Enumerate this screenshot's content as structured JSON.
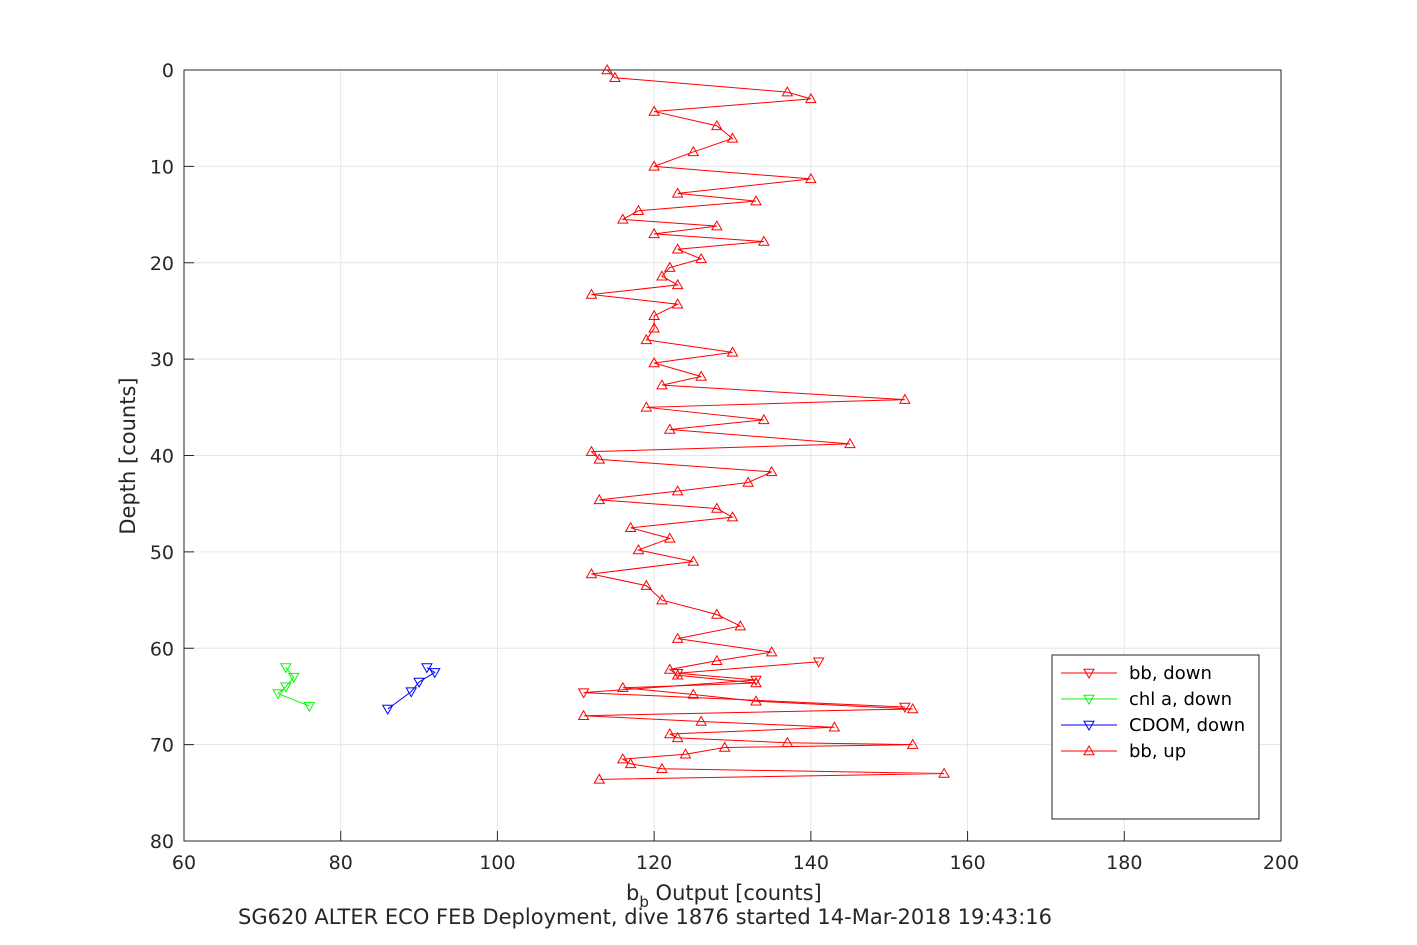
{
  "chart_data": {
    "type": "line",
    "title": "",
    "footer": "SG620 ALTER ECO FEB Deployment, dive 1876 started 14-Mar-2018 19:43:16",
    "xlabel_main": "b",
    "xlabel_sub": "b",
    "xlabel_rest": " Output [counts]",
    "ylabel": "Depth [counts]",
    "xlim": [
      60,
      200
    ],
    "ylim": [
      0,
      80
    ],
    "y_reversed": true,
    "grid": true,
    "legend_position": "bottom-right",
    "x_ticks": [
      60,
      80,
      100,
      120,
      140,
      160,
      180,
      200
    ],
    "y_ticks": [
      0,
      10,
      20,
      30,
      40,
      50,
      60,
      70,
      80
    ],
    "series": [
      {
        "name": "bb, down",
        "color": "#ff0000",
        "marker": "triangle-down",
        "x": [
          141,
          123,
          133,
          111,
          152
        ],
        "y": [
          61.4,
          62.6,
          63.3,
          64.6,
          66.1
        ]
      },
      {
        "name": "chl a, down",
        "color": "#00ff00",
        "marker": "triangle-down",
        "x": [
          73,
          74,
          73,
          72,
          76
        ],
        "y": [
          62,
          63,
          64,
          64.7,
          66
        ]
      },
      {
        "name": "CDOM, down",
        "color": "#0000ff",
        "marker": "triangle-down",
        "x": [
          91,
          92,
          90,
          89,
          86
        ],
        "y": [
          62,
          62.5,
          63.5,
          64.5,
          66.3
        ]
      },
      {
        "name": "bb, up",
        "color": "#ff0000",
        "marker": "triangle-up",
        "x": [
          114,
          115,
          137,
          140,
          120,
          128,
          130,
          125,
          120,
          140,
          123,
          133,
          118,
          116,
          128,
          120,
          134,
          123,
          126,
          122,
          121,
          123,
          112,
          123,
          120,
          120,
          119,
          130,
          120,
          126,
          121,
          152,
          119,
          134,
          122,
          145,
          112,
          113,
          135,
          132,
          123,
          113,
          128,
          130,
          117,
          122,
          118,
          125,
          112,
          119,
          121,
          128,
          131,
          123,
          135,
          128,
          122,
          123,
          133,
          116,
          125,
          133,
          153,
          111,
          126,
          143,
          122,
          123,
          137,
          153,
          129,
          124,
          116,
          117,
          121,
          157,
          113
        ],
        "y": [
          0,
          0.8,
          2.3,
          3,
          4.3,
          5.8,
          7.1,
          8.5,
          10,
          11.3,
          12.8,
          13.6,
          14.6,
          15.5,
          16.2,
          17,
          17.8,
          18.6,
          19.6,
          20.5,
          21.4,
          22.3,
          23.3,
          24.3,
          25.5,
          26.8,
          28,
          29.3,
          30.4,
          31.8,
          32.7,
          34.2,
          35,
          36.3,
          37.3,
          38.8,
          39.6,
          40.4,
          41.7,
          42.8,
          43.7,
          44.6,
          45.5,
          46.4,
          47.5,
          48.6,
          49.8,
          51,
          52.3,
          53.5,
          55,
          56.5,
          57.7,
          59,
          60.4,
          61.3,
          62.2,
          62.8,
          63.6,
          64.1,
          64.8,
          65.5,
          66.3,
          67,
          67.6,
          68.2,
          68.9,
          69.3,
          69.8,
          70,
          70.3,
          71,
          71.5,
          72,
          72.5,
          73,
          73.6
        ]
      }
    ]
  }
}
